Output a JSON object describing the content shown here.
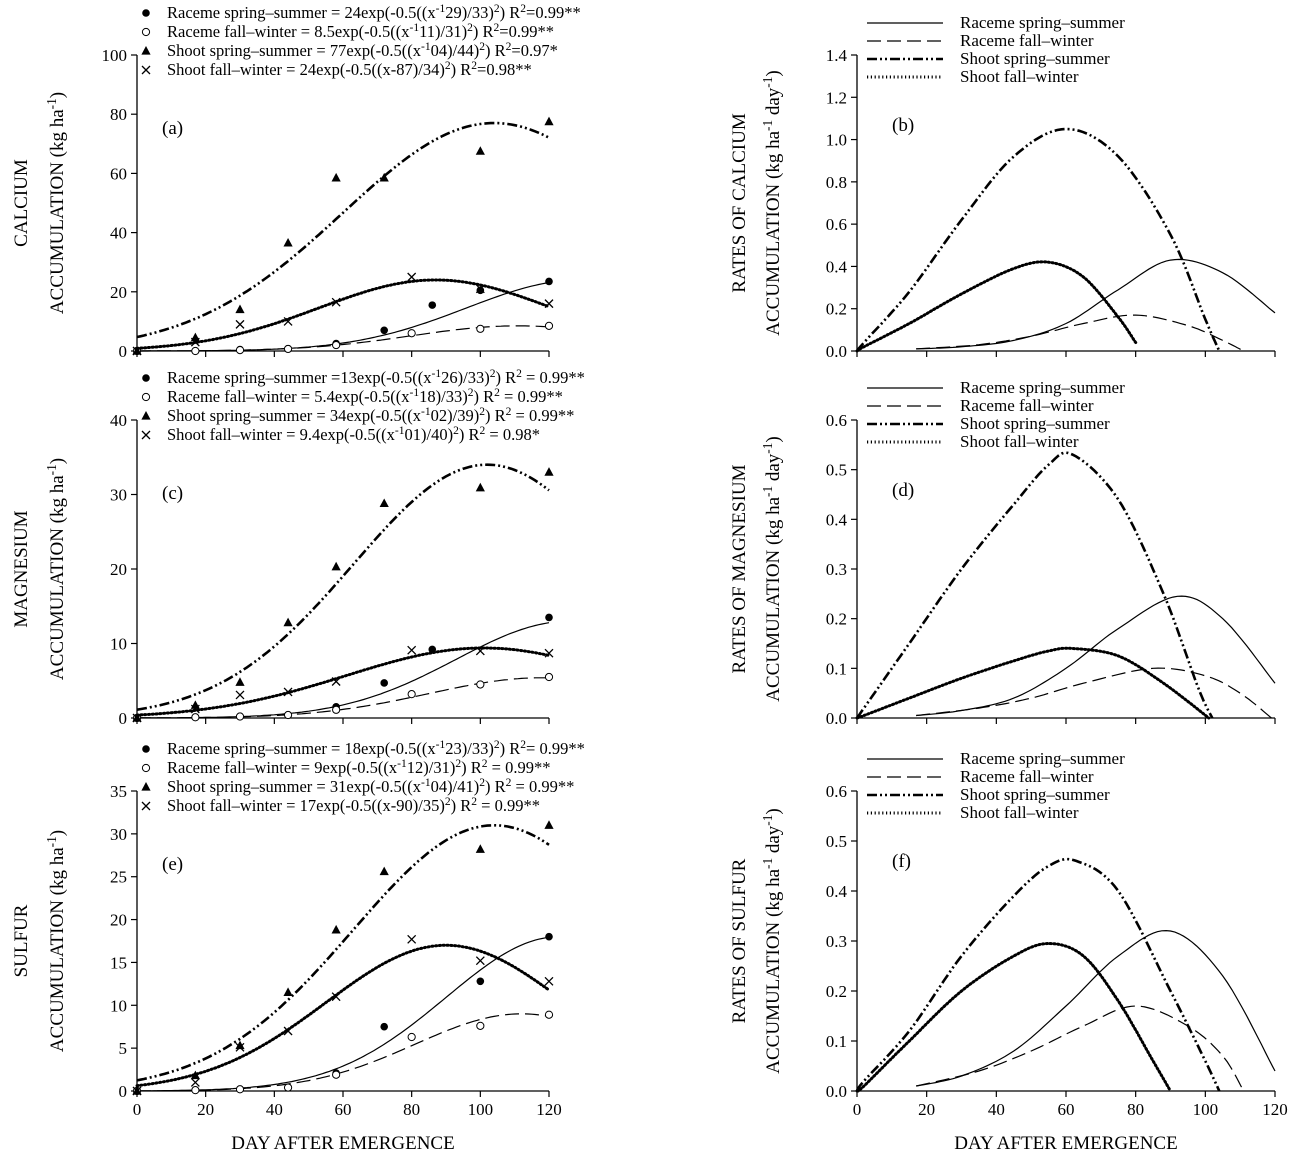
{
  "chart_data": [
    {
      "id": "a",
      "panel_label": "(a)",
      "type": "scatter",
      "xlabel": "",
      "ylabel_top": "CALCIUM",
      "ylabel": "ACCUMULATION (kg ha-1)",
      "xlim": [
        0,
        120
      ],
      "ylim": [
        0,
        100
      ],
      "xticks": [
        0,
        20,
        40,
        60,
        80,
        100,
        120
      ],
      "xtick_labels": [
        "",
        "",
        "",
        "",
        "",
        "",
        ""
      ],
      "yticks": [
        0,
        20,
        40,
        60,
        80,
        100
      ],
      "legend": [
        {
          "marker": "filled-circle",
          "text": "Raceme spring–summer = 24exp(-0.5((x-129)/33)²) R²=0.99**"
        },
        {
          "marker": "open-circle",
          "text": "Raceme fall–winter = 8.5exp(-0.5((x-111)/31)²) R²=0.99**"
        },
        {
          "marker": "filled-triangle",
          "text": "Shoot spring–summer = 77exp(-0.5((x-104)/44)²) R²=0.97*"
        },
        {
          "marker": "cross",
          "text": "Shoot fall–winter = 24exp(-0.5((x-87)/34)²) R²=0.98**"
        }
      ],
      "series": [
        {
          "style": "solid",
          "marker": "filled-circle",
          "fit": {
            "a": 24,
            "b": 129,
            "c": 33,
            "x0": 0,
            "y0": 0
          },
          "x": [
            0,
            17,
            30,
            44,
            58,
            72,
            86,
            100,
            120
          ],
          "y": [
            0,
            0,
            0.5,
            0.8,
            2.5,
            7,
            15.5,
            20.5,
            23.5
          ]
        },
        {
          "style": "dashed",
          "marker": "open-circle",
          "fit": {
            "a": 8.5,
            "b": 111,
            "c": 31,
            "x0": 0,
            "y0": 0
          },
          "x": [
            0,
            17,
            30,
            44,
            58,
            80,
            100,
            120
          ],
          "y": [
            0,
            0,
            0.3,
            0.7,
            2,
            6,
            7.5,
            8.5
          ]
        },
        {
          "style": "dashdotdot",
          "marker": "filled-triangle",
          "fit": {
            "a": 77,
            "b": 104,
            "c": 44,
            "x0": 0,
            "y0": 0
          },
          "x": [
            0,
            17,
            30,
            44,
            58,
            72,
            100,
            120
          ],
          "y": [
            0,
            4.5,
            14,
            36.5,
            58.5,
            58.5,
            67.5,
            77.5
          ]
        },
        {
          "style": "dotted",
          "marker": "cross",
          "fit": {
            "a": 24,
            "b": 87,
            "c": 34,
            "x0": 0,
            "y0": 0
          },
          "x": [
            0,
            17,
            30,
            44,
            58,
            80,
            100,
            120
          ],
          "y": [
            0,
            3,
            9,
            10,
            16.5,
            25,
            21,
            16
          ]
        }
      ]
    },
    {
      "id": "b",
      "panel_label": "(b)",
      "type": "line",
      "xlabel": "",
      "ylabel_top": "RATES OF CALCIUM",
      "ylabel": "ACCUMULATION (kg ha-1 day-1)",
      "xlim": [
        0,
        120
      ],
      "ylim": [
        0,
        1.4
      ],
      "xticks": [
        0,
        20,
        40,
        60,
        80,
        100,
        120
      ],
      "xtick_labels": [
        "",
        "",
        "",
        "",
        "",
        "",
        ""
      ],
      "yticks": [
        0.0,
        0.2,
        0.4,
        0.6,
        0.8,
        1.0,
        1.2,
        1.4
      ],
      "legend": [
        {
          "style": "solid",
          "text": "Raceme spring–summer"
        },
        {
          "style": "dashed",
          "text": "Raceme fall–winter"
        },
        {
          "style": "dashdotdot",
          "text": "Shoot spring–summer"
        },
        {
          "style": "dotted",
          "text": "Shoot fall–winter"
        }
      ],
      "series": [
        {
          "style": "solid",
          "x": [
            17,
            30,
            45,
            60,
            75,
            90,
            105,
            120
          ],
          "y": [
            0.01,
            0.02,
            0.05,
            0.13,
            0.29,
            0.43,
            0.37,
            0.18
          ]
        },
        {
          "style": "dashed",
          "x": [
            17,
            35,
            50,
            65,
            80,
            95,
            105,
            111
          ],
          "y": [
            0.01,
            0.03,
            0.07,
            0.13,
            0.17,
            0.12,
            0.05,
            0.0
          ]
        },
        {
          "style": "dashdotdot",
          "x": [
            0,
            2,
            15,
            30,
            45,
            60,
            75,
            90,
            100,
            104
          ],
          "y": [
            0.0,
            0.04,
            0.28,
            0.62,
            0.92,
            1.05,
            0.92,
            0.55,
            0.15,
            0.0
          ]
        },
        {
          "style": "dotted",
          "x": [
            0,
            2,
            15,
            30,
            45,
            55,
            65,
            75,
            80
          ],
          "y": [
            0.0,
            0.02,
            0.13,
            0.27,
            0.39,
            0.42,
            0.35,
            0.16,
            0.04
          ]
        }
      ]
    },
    {
      "id": "c",
      "panel_label": "(c)",
      "type": "scatter",
      "xlabel": "",
      "ylabel_top": "MAGNESIUM",
      "ylabel": "ACCUMULATION (kg ha-1)",
      "xlim": [
        0,
        120
      ],
      "ylim": [
        0,
        40
      ],
      "xticks": [
        0,
        20,
        40,
        60,
        80,
        100,
        120
      ],
      "xtick_labels": [
        "",
        "",
        "",
        "",
        "",
        "",
        ""
      ],
      "yticks": [
        0,
        10,
        20,
        30,
        40
      ],
      "legend": [
        {
          "marker": "filled-circle",
          "text": "Raceme spring–summer =13exp(-0.5((x-126)/33)²) R² = 0.99**"
        },
        {
          "marker": "open-circle",
          "text": "Raceme fall–winter = 5.4exp(-0.5((x-118)/33)²) R² = 0.99**"
        },
        {
          "marker": "filled-triangle",
          "text": "Shoot spring–summer = 34exp(-0.5((x-102)/39)²) R² = 0.99**"
        },
        {
          "marker": "cross",
          "text": "Shoot fall–winter = 9.4exp(-0.5((x-101)/40)²) R² = 0.98*"
        }
      ],
      "series": [
        {
          "style": "solid",
          "marker": "filled-circle",
          "fit": {
            "a": 13,
            "b": 126,
            "c": 33,
            "x0": 0,
            "y0": 0
          },
          "x": [
            0,
            17,
            30,
            44,
            58,
            72,
            86,
            120
          ],
          "y": [
            0,
            0.1,
            0.2,
            0.4,
            1.5,
            4.7,
            9.2,
            13.5
          ]
        },
        {
          "style": "dashed",
          "marker": "open-circle",
          "fit": {
            "a": 5.4,
            "b": 118,
            "c": 33,
            "x0": 0,
            "y0": 0
          },
          "x": [
            0,
            17,
            30,
            44,
            58,
            80,
            100,
            120
          ],
          "y": [
            0,
            0.1,
            0.2,
            0.4,
            1.1,
            3.2,
            4.5,
            5.5
          ]
        },
        {
          "style": "dashdotdot",
          "marker": "filled-triangle",
          "fit": {
            "a": 34,
            "b": 102,
            "c": 39,
            "x0": 0,
            "y0": 0
          },
          "x": [
            0,
            17,
            30,
            44,
            58,
            72,
            100,
            120
          ],
          "y": [
            0,
            1.7,
            4.8,
            12.8,
            20.3,
            28.8,
            30.9,
            33
          ]
        },
        {
          "style": "dotted",
          "marker": "cross",
          "fit": {
            "a": 9.4,
            "b": 101,
            "c": 40,
            "x0": 0,
            "y0": 0
          },
          "x": [
            0,
            17,
            30,
            44,
            58,
            80,
            100,
            120
          ],
          "y": [
            0,
            1.2,
            3.1,
            3.5,
            4.9,
            9.1,
            9,
            8.7
          ]
        }
      ]
    },
    {
      "id": "d",
      "panel_label": "(d)",
      "type": "line",
      "xlabel": "",
      "ylabel_top": "RATES OF MAGNESIUM",
      "ylabel": "ACCUMULATION (kg ha-1 day-1)",
      "xlim": [
        0,
        120
      ],
      "ylim": [
        0,
        0.6
      ],
      "xticks": [
        0,
        20,
        40,
        60,
        80,
        100,
        120
      ],
      "xtick_labels": [
        "",
        "",
        "",
        "",
        "",
        "",
        ""
      ],
      "yticks": [
        0.0,
        0.1,
        0.2,
        0.3,
        0.4,
        0.5,
        0.6
      ],
      "legend": [
        {
          "style": "solid",
          "text": "Raceme spring–summer"
        },
        {
          "style": "dashed",
          "text": "Raceme fall–winter"
        },
        {
          "style": "dashdotdot",
          "text": "Shoot spring–summer"
        },
        {
          "style": "dotted",
          "text": "Shoot fall–winter"
        }
      ],
      "series": [
        {
          "style": "solid",
          "x": [
            17,
            30,
            45,
            60,
            75,
            92,
            105,
            120
          ],
          "y": [
            0.005,
            0.015,
            0.04,
            0.1,
            0.18,
            0.245,
            0.2,
            0.07
          ]
        },
        {
          "style": "dashed",
          "x": [
            17,
            35,
            50,
            65,
            85,
            100,
            110,
            119
          ],
          "y": [
            0.005,
            0.02,
            0.04,
            0.07,
            0.1,
            0.085,
            0.05,
            0.0
          ]
        },
        {
          "style": "dashdotdot",
          "x": [
            0,
            2,
            15,
            30,
            45,
            55,
            62,
            75,
            88,
            98,
            102
          ],
          "y": [
            0.0,
            0.02,
            0.15,
            0.3,
            0.43,
            0.51,
            0.53,
            0.44,
            0.25,
            0.06,
            0.0
          ]
        },
        {
          "style": "dotted",
          "x": [
            0,
            2,
            15,
            30,
            45,
            55,
            62,
            75,
            88,
            101
          ],
          "y": [
            0.0,
            0.005,
            0.04,
            0.08,
            0.115,
            0.135,
            0.14,
            0.125,
            0.07,
            0.0
          ]
        }
      ]
    },
    {
      "id": "e",
      "panel_label": "(e)",
      "type": "scatter",
      "xlabel": "DAY AFTER EMERGENCE",
      "ylabel_top": "SULFUR",
      "ylabel": "ACCUMULATION (kg ha-1)",
      "xlim": [
        0,
        120
      ],
      "ylim": [
        0,
        35
      ],
      "xticks": [
        0,
        20,
        40,
        60,
        80,
        100,
        120
      ],
      "xtick_labels": [
        "0",
        "20",
        "40",
        "60",
        "80",
        "100",
        "120"
      ],
      "yticks": [
        0,
        5,
        10,
        15,
        20,
        25,
        30,
        35
      ],
      "legend": [
        {
          "marker": "filled-circle",
          "text": "Raceme spring–summer = 18exp(-0.5((x-123)/33)²) R²= 0.99**"
        },
        {
          "marker": "open-circle",
          "text": "Raceme fall–winter = 9exp(-0.5((x-112)/31)²) R² = 0.99**"
        },
        {
          "marker": "filled-triangle",
          "text": "Shoot spring–summer = 31exp(-0.5((x-104)/41)²) R² = 0.99**"
        },
        {
          "marker": "cross",
          "text": "Shoot fall–winter = 17exp(-0.5((x-90)/35)²) R² = 0.99**"
        }
      ],
      "series": [
        {
          "style": "solid",
          "marker": "filled-circle",
          "fit": {
            "a": 18,
            "b": 123,
            "c": 33,
            "x0": 0,
            "y0": 0
          },
          "x": [
            0,
            17,
            30,
            44,
            58,
            72,
            100,
            120
          ],
          "y": [
            0,
            0.1,
            0.2,
            0.4,
            2.1,
            7.5,
            12.8,
            18
          ]
        },
        {
          "style": "dashed",
          "marker": "open-circle",
          "fit": {
            "a": 9,
            "b": 112,
            "c": 31,
            "x0": 0,
            "y0": 0
          },
          "x": [
            0,
            17,
            30,
            44,
            58,
            80,
            100,
            120
          ],
          "y": [
            0,
            0.1,
            0.2,
            0.4,
            1.9,
            6.3,
            7.6,
            8.9
          ]
        },
        {
          "style": "dashdotdot",
          "marker": "filled-triangle",
          "fit": {
            "a": 31,
            "b": 104,
            "c": 41,
            "x0": 0,
            "y0": 0
          },
          "x": [
            0,
            17,
            30,
            44,
            58,
            72,
            100,
            120
          ],
          "y": [
            0,
            1.8,
            5.3,
            11.5,
            18.8,
            25.6,
            28.2,
            31
          ]
        },
        {
          "style": "dotted",
          "marker": "cross",
          "fit": {
            "a": 17,
            "b": 90,
            "c": 35,
            "x0": 0,
            "y0": 0
          },
          "x": [
            0,
            17,
            30,
            44,
            58,
            80,
            100,
            120
          ],
          "y": [
            0,
            1,
            5.1,
            7,
            11,
            17.7,
            15.2,
            12.8
          ]
        }
      ]
    },
    {
      "id": "f",
      "panel_label": "(f)",
      "type": "line",
      "xlabel": "DAY AFTER EMERGENCE",
      "ylabel_top": "RATES OF SULFUR",
      "ylabel": "ACCUMULATION (kg ha-1 day-1)",
      "xlim": [
        0,
        120
      ],
      "ylim": [
        0,
        0.6
      ],
      "xticks": [
        0,
        20,
        40,
        60,
        80,
        100,
        120
      ],
      "xtick_labels": [
        "0",
        "20",
        "40",
        "60",
        "80",
        "100",
        "120"
      ],
      "yticks": [
        0.0,
        0.1,
        0.2,
        0.3,
        0.4,
        0.5,
        0.6
      ],
      "legend": [
        {
          "style": "solid",
          "text": "Raceme spring–summer"
        },
        {
          "style": "dashed",
          "text": "Raceme fall–winter"
        },
        {
          "style": "dashdotdot",
          "text": "Shoot spring–summer"
        },
        {
          "style": "dotted",
          "text": "Shoot fall–winter"
        }
      ],
      "series": [
        {
          "style": "solid",
          "x": [
            17,
            30,
            45,
            60,
            75,
            90,
            105,
            120
          ],
          "y": [
            0.01,
            0.03,
            0.08,
            0.17,
            0.27,
            0.32,
            0.23,
            0.04
          ]
        },
        {
          "style": "dashed",
          "x": [
            17,
            35,
            50,
            65,
            80,
            95,
            105,
            111
          ],
          "y": [
            0.01,
            0.04,
            0.08,
            0.13,
            0.17,
            0.13,
            0.07,
            0.0
          ]
        },
        {
          "style": "dashdotdot",
          "x": [
            0,
            2,
            15,
            30,
            45,
            55,
            63,
            75,
            90,
            100,
            104
          ],
          "y": [
            0.0,
            0.02,
            0.12,
            0.27,
            0.39,
            0.45,
            0.46,
            0.4,
            0.2,
            0.06,
            0.0
          ]
        },
        {
          "style": "dotted",
          "x": [
            0,
            2,
            15,
            30,
            45,
            55,
            65,
            75,
            85,
            90
          ],
          "y": [
            0.0,
            0.01,
            0.1,
            0.2,
            0.27,
            0.295,
            0.27,
            0.18,
            0.06,
            0.0
          ]
        }
      ]
    }
  ]
}
